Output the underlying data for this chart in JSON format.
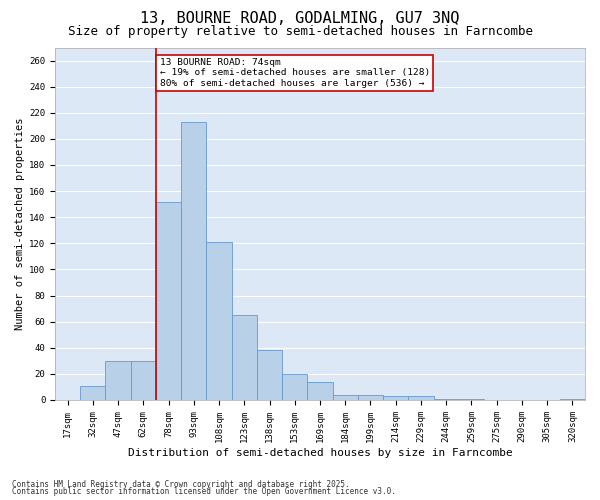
{
  "title1": "13, BOURNE ROAD, GODALMING, GU7 3NQ",
  "title2": "Size of property relative to semi-detached houses in Farncombe",
  "xlabel": "Distribution of semi-detached houses by size in Farncombe",
  "ylabel": "Number of semi-detached properties",
  "categories": [
    "17sqm",
    "32sqm",
    "47sqm",
    "62sqm",
    "78sqm",
    "93sqm",
    "108sqm",
    "123sqm",
    "138sqm",
    "153sqm",
    "169sqm",
    "184sqm",
    "199sqm",
    "214sqm",
    "229sqm",
    "244sqm",
    "259sqm",
    "275sqm",
    "290sqm",
    "305sqm",
    "320sqm"
  ],
  "values": [
    0,
    11,
    30,
    30,
    152,
    213,
    121,
    65,
    38,
    20,
    14,
    4,
    4,
    3,
    3,
    1,
    1,
    0,
    0,
    0,
    1
  ],
  "bar_color": "#b8d0e8",
  "bar_edge_color": "#6699cc",
  "property_line_color": "#cc0000",
  "annotation_text": "13 BOURNE ROAD: 74sqm\n← 19% of semi-detached houses are smaller (128)\n80% of semi-detached houses are larger (536) →",
  "annotation_box_color": "#ffffff",
  "annotation_box_edge_color": "#cc0000",
  "ylim": [
    0,
    270
  ],
  "yticks": [
    0,
    20,
    40,
    60,
    80,
    100,
    120,
    140,
    160,
    180,
    200,
    220,
    240,
    260
  ],
  "background_color": "#dce8f5",
  "grid_color": "#ffffff",
  "footer1": "Contains HM Land Registry data © Crown copyright and database right 2025.",
  "footer2": "Contains public sector information licensed under the Open Government Licence v3.0.",
  "title1_fontsize": 11,
  "title2_fontsize": 9,
  "tick_fontsize": 6.5,
  "ylabel_fontsize": 7.5,
  "xlabel_fontsize": 8,
  "annotation_fontsize": 6.8,
  "footer_fontsize": 5.5
}
